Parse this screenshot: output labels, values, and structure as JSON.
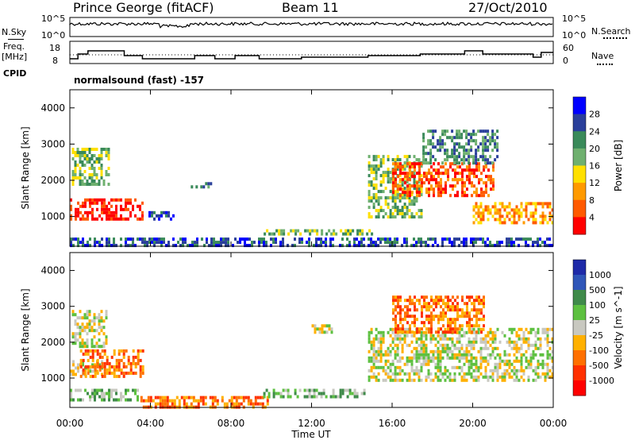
{
  "header": {
    "station": "Prince George (fitACF)",
    "beam": "Beam 11",
    "date": "27/Oct/2010"
  },
  "top_panels": {
    "nsky_label": "N.Sky",
    "nsky_ticks": [
      "10^5",
      "10^0"
    ],
    "nsearch_label": "N.Search",
    "nsearch_ticks": [
      "10^5",
      "10^0"
    ],
    "freq_label_1": "Freq.",
    "freq_label_2": "[MHz]",
    "freq_ticks": [
      "18",
      "8"
    ],
    "nave_label": "Nave",
    "nave_ticks": [
      "60",
      "0"
    ],
    "cpid_label": "CPID",
    "cpid_text": "normalsound (fast) -157"
  },
  "colors": {
    "power_scale": [
      "#0000ff",
      "#2a3f9a",
      "#3a8a5a",
      "#6fb06f",
      "#ffe000",
      "#ff9a00",
      "#ff5a00",
      "#ff0000"
    ],
    "velocity_scale": [
      "#1e2aa8",
      "#2f56b8",
      "#3f8a4a",
      "#5dc040",
      "#c8c8c0",
      "#ffb000",
      "#ff7000",
      "#ff3000",
      "#ff0000"
    ]
  },
  "chart_data": [
    {
      "type": "heatmap",
      "name": "power",
      "xlabel": "",
      "ylabel": "Slant Range [km]",
      "x_ticks": [
        "00:00",
        "04:00",
        "08:00",
        "12:00",
        "16:00",
        "20:00",
        "00:00"
      ],
      "y_ticks": [
        "4000",
        "3000",
        "2000",
        "1000"
      ],
      "ylim": [
        180,
        4500
      ],
      "colorbar_label": "Power [dB]",
      "colorbar_ticks": [
        "28",
        "24",
        "20",
        "16",
        "12",
        "8",
        "4"
      ],
      "regions": [
        {
          "t0": 0.0,
          "t1": 3.6,
          "r0": 900,
          "r1": 1500,
          "level": 7
        },
        {
          "t0": 0.1,
          "t1": 1.9,
          "r0": 1900,
          "r1": 2900,
          "level": 3
        },
        {
          "t0": 3.9,
          "t1": 5.2,
          "r0": 950,
          "r1": 1150,
          "level": 1
        },
        {
          "t0": 6.0,
          "t1": 7.0,
          "r0": 1800,
          "r1": 1950,
          "level": 2
        },
        {
          "t0": 9.5,
          "t1": 15.0,
          "r0": 500,
          "r1": 650,
          "level": 3
        },
        {
          "t0": 14.8,
          "t1": 17.5,
          "r0": 1000,
          "r1": 2700,
          "level": 3
        },
        {
          "t0": 16.0,
          "t1": 21.0,
          "r0": 1600,
          "r1": 2500,
          "level": 6
        },
        {
          "t0": 17.5,
          "t1": 21.2,
          "r0": 2500,
          "r1": 3400,
          "level": 2
        },
        {
          "t0": 20.0,
          "t1": 24.0,
          "r0": 800,
          "r1": 1400,
          "level": 5
        },
        {
          "t0": 0.0,
          "t1": 24.0,
          "r0": 180,
          "r1": 420,
          "level": 1
        }
      ]
    },
    {
      "type": "heatmap",
      "name": "velocity",
      "xlabel": "Time UT",
      "ylabel": "Slant Range [km]",
      "x_ticks": [
        "00:00",
        "04:00",
        "08:00",
        "12:00",
        "16:00",
        "20:00",
        "00:00"
      ],
      "y_ticks": [
        "4000",
        "3000",
        "2000",
        "1000"
      ],
      "ylim": [
        180,
        4500
      ],
      "colorbar_label": "Velocity [m s^-1]",
      "colorbar_ticks": [
        "1000",
        "500",
        "100",
        "25",
        "-25",
        "-100",
        "-500",
        "-1000"
      ],
      "regions": [
        {
          "t0": 0.0,
          "t1": 1.6,
          "r0": 1100,
          "r1": 1500,
          "level": 4
        },
        {
          "t0": 0.5,
          "t1": 3.6,
          "r0": 1050,
          "r1": 1800,
          "level": 6
        },
        {
          "t0": 0.1,
          "t1": 1.8,
          "r0": 1900,
          "r1": 2900,
          "level": 4
        },
        {
          "t0": 0.0,
          "t1": 3.4,
          "r0": 400,
          "r1": 700,
          "level": 3
        },
        {
          "t0": 3.5,
          "t1": 10.0,
          "r0": 180,
          "r1": 500,
          "level": 6
        },
        {
          "t0": 9.6,
          "t1": 14.8,
          "r0": 500,
          "r1": 700,
          "level": 3
        },
        {
          "t0": 14.8,
          "t1": 24.0,
          "r0": 900,
          "r1": 2400,
          "level": 4
        },
        {
          "t0": 16.0,
          "t1": 20.5,
          "r0": 2300,
          "r1": 3300,
          "level": 6
        },
        {
          "t0": 12.0,
          "t1": 13.0,
          "r0": 2300,
          "r1": 2500,
          "level": 4
        }
      ]
    }
  ]
}
